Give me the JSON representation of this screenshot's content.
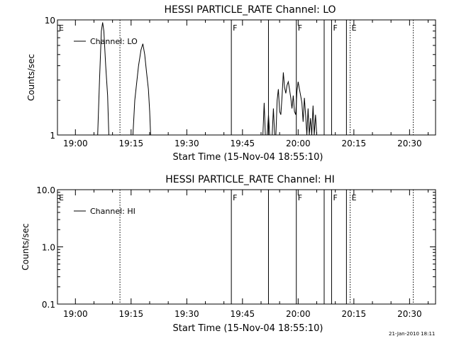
{
  "footer": {
    "timestamp": "21-Jan-2010 18:11"
  },
  "chart_data": [
    {
      "type": "line",
      "title": "HESSI PARTICLE_RATE Channel: LO",
      "xlabel": "Start Time (15-Nov-04 18:55:10)",
      "ylabel": "Counts/sec",
      "y_scale": "log",
      "ylim": [
        1,
        10
      ],
      "y_ticks": [
        "1",
        "10"
      ],
      "x_ticks": [
        "19:00",
        "19:15",
        "19:30",
        "19:45",
        "20:00",
        "20:15",
        "20:30"
      ],
      "x_range": [
        "18:55:10",
        "20:37:00"
      ],
      "legend": {
        "placement": "top-left",
        "entries": [
          "Channel: LO"
        ]
      },
      "markers": [
        {
          "time": "18:55:10",
          "label": "E",
          "style": "solid"
        },
        {
          "time": "19:12:00",
          "label": "",
          "style": "dotted"
        },
        {
          "time": "19:42:00",
          "label": "F",
          "style": "solid"
        },
        {
          "time": "19:52:00",
          "label": "",
          "style": "solid"
        },
        {
          "time": "19:59:30",
          "label": "F",
          "style": "solid"
        },
        {
          "time": "20:07:00",
          "label": "",
          "style": "solid"
        },
        {
          "time": "20:09:00",
          "label": "F",
          "style": "solid"
        },
        {
          "time": "20:13:00",
          "label": "",
          "style": "solid"
        },
        {
          "time": "20:14:00",
          "label": "E",
          "style": "dotted"
        },
        {
          "time": "20:31:00",
          "label": "",
          "style": "dotted"
        }
      ],
      "series": [
        {
          "name": "Channel: LO",
          "points": [
            [
              "19:06:00",
              1
            ],
            [
              "19:06:30",
              3
            ],
            [
              "19:07:00",
              8
            ],
            [
              "19:07:20",
              9.5
            ],
            [
              "19:07:40",
              8
            ],
            [
              "19:08:10",
              4
            ],
            [
              "19:08:40",
              2.2
            ],
            [
              "19:09:00",
              1
            ],
            [
              "19:15:30",
              1
            ],
            [
              "19:16:00",
              2
            ],
            [
              "19:17:00",
              4
            ],
            [
              "19:17:40",
              5.5
            ],
            [
              "19:18:10",
              6.2
            ],
            [
              "19:18:40",
              5
            ],
            [
              "19:19:10",
              3.5
            ],
            [
              "19:19:40",
              2.5
            ],
            [
              "19:20:00",
              1.6
            ],
            [
              "19:20:15",
              1
            ],
            [
              "19:50:30",
              1
            ],
            [
              "19:50:50",
              1.9
            ],
            [
              "19:51:10",
              1
            ],
            [
              "19:51:40",
              1
            ],
            [
              "19:52:00",
              1.5
            ],
            [
              "19:52:20",
              1
            ],
            [
              "19:53:00",
              1
            ],
            [
              "19:53:20",
              1.7
            ],
            [
              "19:53:40",
              1
            ],
            [
              "19:54:00",
              1
            ],
            [
              "19:54:20",
              2
            ],
            [
              "19:54:40",
              2.5
            ],
            [
              "19:55:00",
              1.6
            ],
            [
              "19:55:20",
              1.5
            ],
            [
              "19:55:40",
              2.2
            ],
            [
              "19:56:00",
              3.5
            ],
            [
              "19:56:20",
              2.6
            ],
            [
              "19:56:40",
              2.3
            ],
            [
              "19:57:00",
              2.7
            ],
            [
              "19:57:20",
              2.9
            ],
            [
              "19:57:40",
              2.5
            ],
            [
              "19:58:00",
              2.1
            ],
            [
              "19:58:20",
              1.7
            ],
            [
              "19:58:40",
              2.2
            ],
            [
              "19:59:00",
              1.6
            ],
            [
              "19:59:20",
              1.5
            ],
            [
              "19:59:40",
              2.4
            ],
            [
              "20:00:00",
              2.9
            ],
            [
              "20:00:20",
              2.5
            ],
            [
              "20:00:40",
              2.2
            ],
            [
              "20:01:00",
              1.9
            ],
            [
              "20:01:20",
              1.3
            ],
            [
              "20:01:40",
              2.1
            ],
            [
              "20:02:00",
              1.5
            ],
            [
              "20:02:20",
              1
            ],
            [
              "20:02:40",
              1.7
            ],
            [
              "20:03:00",
              1
            ],
            [
              "20:03:20",
              1.4
            ],
            [
              "20:03:40",
              1
            ],
            [
              "20:04:00",
              1.8
            ],
            [
              "20:04:20",
              1
            ],
            [
              "20:04:40",
              1.5
            ],
            [
              "20:05:00",
              1
            ]
          ]
        }
      ]
    },
    {
      "type": "line",
      "title": "HESSI PARTICLE_RATE Channel: HI",
      "xlabel": "Start Time (15-Nov-04 18:55:10)",
      "ylabel": "Counts/sec",
      "y_scale": "log",
      "ylim": [
        0.1,
        10
      ],
      "y_ticks": [
        "0.1",
        "1.0",
        "10.0"
      ],
      "x_ticks": [
        "19:00",
        "19:15",
        "19:30",
        "19:45",
        "20:00",
        "20:15",
        "20:30"
      ],
      "x_range": [
        "18:55:10",
        "20:37:00"
      ],
      "legend": {
        "placement": "top-left",
        "entries": [
          "Channel: HI"
        ]
      },
      "markers": [
        {
          "time": "18:55:10",
          "label": "E",
          "style": "solid"
        },
        {
          "time": "19:12:00",
          "label": "",
          "style": "dotted"
        },
        {
          "time": "19:42:00",
          "label": "F",
          "style": "solid"
        },
        {
          "time": "19:52:00",
          "label": "",
          "style": "solid"
        },
        {
          "time": "19:59:30",
          "label": "F",
          "style": "solid"
        },
        {
          "time": "20:07:00",
          "label": "",
          "style": "solid"
        },
        {
          "time": "20:09:00",
          "label": "F",
          "style": "solid"
        },
        {
          "time": "20:13:00",
          "label": "",
          "style": "solid"
        },
        {
          "time": "20:14:00",
          "label": "E",
          "style": "dotted"
        },
        {
          "time": "20:31:00",
          "label": "",
          "style": "dotted"
        }
      ],
      "series": [
        {
          "name": "Channel: HI",
          "points": []
        }
      ]
    }
  ]
}
